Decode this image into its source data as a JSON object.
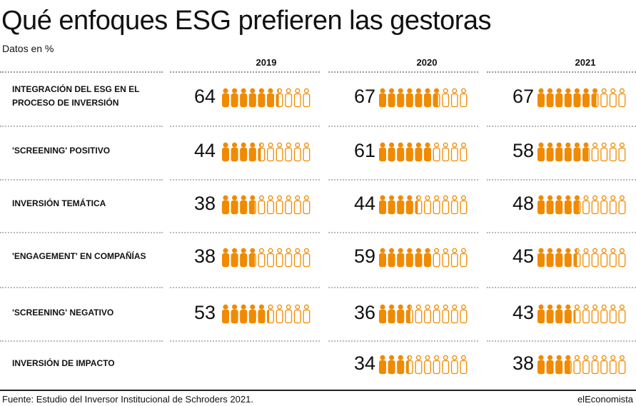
{
  "header": {
    "title": "Qué enfoques ESG prefieren las gestoras",
    "subtitle": "Datos en %"
  },
  "footer": {
    "source": "Fuente: Estudio del Inversor Institucional de Schroders 2021.",
    "brand": "elEconomista"
  },
  "colors": {
    "accent": "#f08a00",
    "text": "#111111",
    "rule": "#b9b9b9"
  },
  "chart_data": {
    "type": "table",
    "title": "Qué enfoques ESG prefieren las gestoras",
    "unit": "Datos en %",
    "years": [
      "2019",
      "2020",
      "2021"
    ],
    "rows": [
      {
        "label": "INTEGRACIÓN DEL ESG EN EL PROCESO DE INVERSIÓN",
        "values": [
          64,
          67,
          67
        ]
      },
      {
        "label": "'SCREENING' POSITIVO",
        "values": [
          44,
          61,
          58
        ]
      },
      {
        "label": "INVERSIÓN TEMÁTICA",
        "values": [
          38,
          44,
          48
        ]
      },
      {
        "label": "'ENGAGEMENT' EN COMPAÑÍAS",
        "values": [
          38,
          59,
          45
        ]
      },
      {
        "label": "'SCREENING' NEGATIVO",
        "values": [
          53,
          36,
          43
        ]
      },
      {
        "label": "INVERSIÓN DE IMPACTO",
        "values": [
          null,
          34,
          38
        ]
      }
    ]
  }
}
